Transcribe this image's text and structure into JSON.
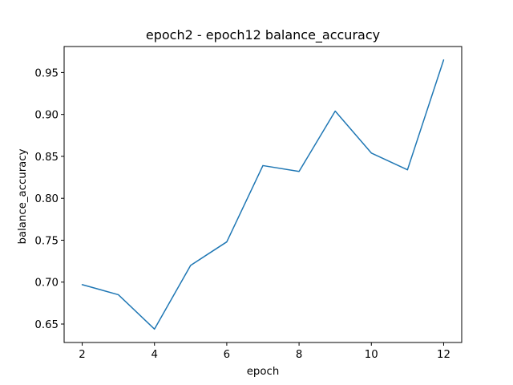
{
  "chart_data": {
    "type": "line",
    "title": "epoch2 - epoch12 balance_accuracy",
    "xlabel": "epoch",
    "ylabel": "balance_accuracy",
    "x": [
      2,
      3,
      4,
      5,
      6,
      7,
      8,
      9,
      10,
      11,
      12
    ],
    "series": [
      {
        "values": [
          0.697,
          0.685,
          0.644,
          0.72,
          0.748,
          0.839,
          0.832,
          0.904,
          0.854,
          0.834,
          0.965
        ],
        "color": "#1f77b4"
      }
    ],
    "xlim": [
      1.5,
      12.5
    ],
    "ylim": [
      0.628,
      0.981
    ],
    "xticks": [
      2,
      4,
      6,
      8,
      10,
      12
    ],
    "xtick_labels": [
      "2",
      "4",
      "6",
      "8",
      "10",
      "12"
    ],
    "yticks": [
      0.65,
      0.7,
      0.75,
      0.8,
      0.85,
      0.9,
      0.95
    ],
    "ytick_labels": [
      "0.65",
      "0.70",
      "0.75",
      "0.80",
      "0.85",
      "0.90",
      "0.95"
    ],
    "grid": false,
    "legend": "none"
  }
}
